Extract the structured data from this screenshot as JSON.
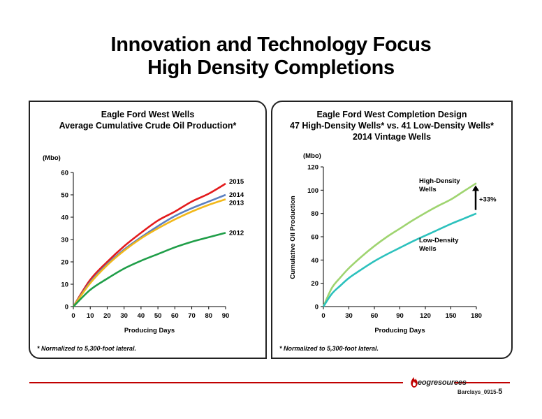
{
  "slide": {
    "title_line1": "Innovation and Technology Focus",
    "title_line2": "High Density Completions",
    "logo_text": "eogresources",
    "reference": "Barclays_0915",
    "page_number": "5"
  },
  "colors": {
    "red_line": "#c00000",
    "series_2015": "#e31a1c",
    "series_2014": "#5b7fc0",
    "series_2013": "#f2b81a",
    "series_2012": "#1f9e48",
    "high_density": "#9fd470",
    "low_density": "#2cc1bd"
  },
  "chart_data": [
    {
      "type": "line",
      "title": "Eagle Ford West Wells",
      "subtitle": "Average Cumulative Crude Oil Production*",
      "xlabel": "Producing Days",
      "ylabel": "(Mbo)",
      "xlim": [
        0,
        90
      ],
      "ylim": [
        0,
        60
      ],
      "xticks": [
        0,
        10,
        20,
        30,
        40,
        50,
        60,
        70,
        80,
        90
      ],
      "yticks": [
        0,
        10,
        20,
        30,
        40,
        50,
        60
      ],
      "grid": false,
      "legend": "series labels at line ends",
      "footnote": "* Normalized to 5,300-foot lateral.",
      "x": [
        0,
        10,
        20,
        30,
        40,
        50,
        60,
        70,
        80,
        90
      ],
      "series": [
        {
          "name": "2015",
          "color": "#e31a1c",
          "values": [
            0,
            12,
            20,
            27,
            33,
            38.5,
            42.5,
            47,
            50.5,
            55
          ]
        },
        {
          "name": "2014",
          "color": "#5b7fc0",
          "values": [
            0,
            11,
            19,
            25.5,
            31,
            36,
            40.5,
            44,
            47,
            50
          ]
        },
        {
          "name": "2013",
          "color": "#f2b81a",
          "values": [
            0,
            10.5,
            18.5,
            25,
            30.5,
            35,
            39,
            42.5,
            45.5,
            48
          ]
        },
        {
          "name": "2012",
          "color": "#1f9e48",
          "values": [
            0,
            7.5,
            12.5,
            17,
            20.5,
            23.5,
            26.5,
            29,
            31,
            33
          ]
        }
      ]
    },
    {
      "type": "line",
      "title": "Eagle Ford West Completion Design",
      "subtitle": "47 High-Density Wells* vs. 41 Low-Density Wells*",
      "subtitle2": "2014 Vintage Wells",
      "xlabel": "Producing Days",
      "ylabel": "Cumulative Oil Production",
      "yunit": "(Mbo)",
      "xlim": [
        0,
        180
      ],
      "ylim": [
        0,
        120
      ],
      "xticks": [
        0,
        30,
        60,
        90,
        120,
        150,
        180
      ],
      "yticks": [
        0,
        20,
        40,
        60,
        80,
        100,
        120
      ],
      "grid": false,
      "footnote": "* Normalized to 5,300-foot lateral.",
      "annotation": "+33%",
      "x": [
        0,
        10,
        20,
        30,
        45,
        60,
        75,
        90,
        105,
        120,
        135,
        150,
        165,
        180
      ],
      "series": [
        {
          "name": "High-Density Wells",
          "color": "#9fd470",
          "values": [
            0,
            16,
            25,
            33,
            43,
            52,
            60,
            67,
            74,
            80.5,
            86.5,
            92,
            99,
            106
          ]
        },
        {
          "name": "Low-Density Wells",
          "color": "#2cc1bd",
          "values": [
            0,
            11,
            18,
            24.5,
            32,
            39,
            45,
            50.5,
            56,
            61,
            66,
            71,
            75.5,
            80
          ]
        }
      ]
    }
  ]
}
